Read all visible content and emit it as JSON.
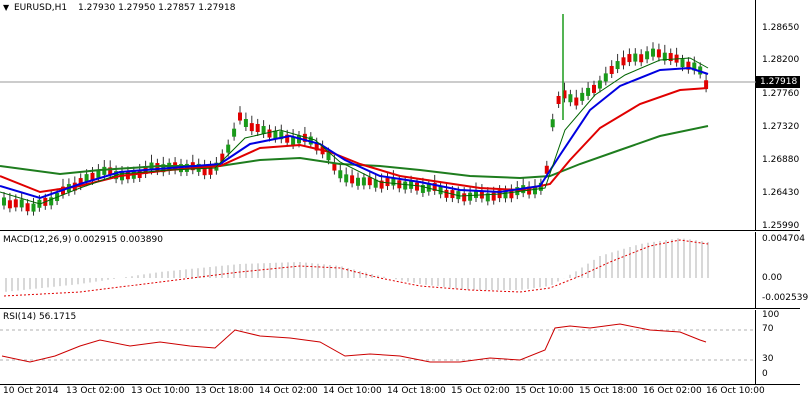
{
  "price_pane": {
    "header_icon": "triangle-down-icon",
    "symbol_tf": "EURUSD,H1",
    "ohlc": "1.27930 1.27950 1.27857 1.27918",
    "last_price": "1.27918",
    "yticks": [
      "1.28650",
      "1.28200",
      "1.27760",
      "1.27320",
      "1.26880",
      "1.26430",
      "1.25990"
    ]
  },
  "macd_pane": {
    "title": "MACD(12,26,9) 0.002915 0.003890",
    "yticks": [
      "0.004704",
      "0.00",
      "-0.002539"
    ]
  },
  "rsi_pane": {
    "title": "RSI(14) 56.1715",
    "yticks": [
      "100",
      "70",
      "30",
      "0"
    ]
  },
  "x_axis": {
    "labels": [
      "10 Oct 2014",
      "13 Oct 02:00",
      "13 Oct 10:00",
      "13 Oct 18:00",
      "14 Oct 02:00",
      "14 Oct 10:00",
      "14 Oct 18:00",
      "15 Oct 02:00",
      "15 Oct 10:00",
      "15 Oct 18:00",
      "16 Oct 02:00",
      "16 Oct 10:00"
    ]
  },
  "colors": {
    "bull": "#1a9a1a",
    "bear": "#e00000",
    "ma_blue": "#0000e0",
    "ma_red": "#e00000",
    "ma_green": "#1e7d1e",
    "ma_thin": "#006400",
    "macd_hist": "#b0b0b0",
    "macd_signal": "#e00000",
    "rsi_line": "#cc0000"
  }
}
